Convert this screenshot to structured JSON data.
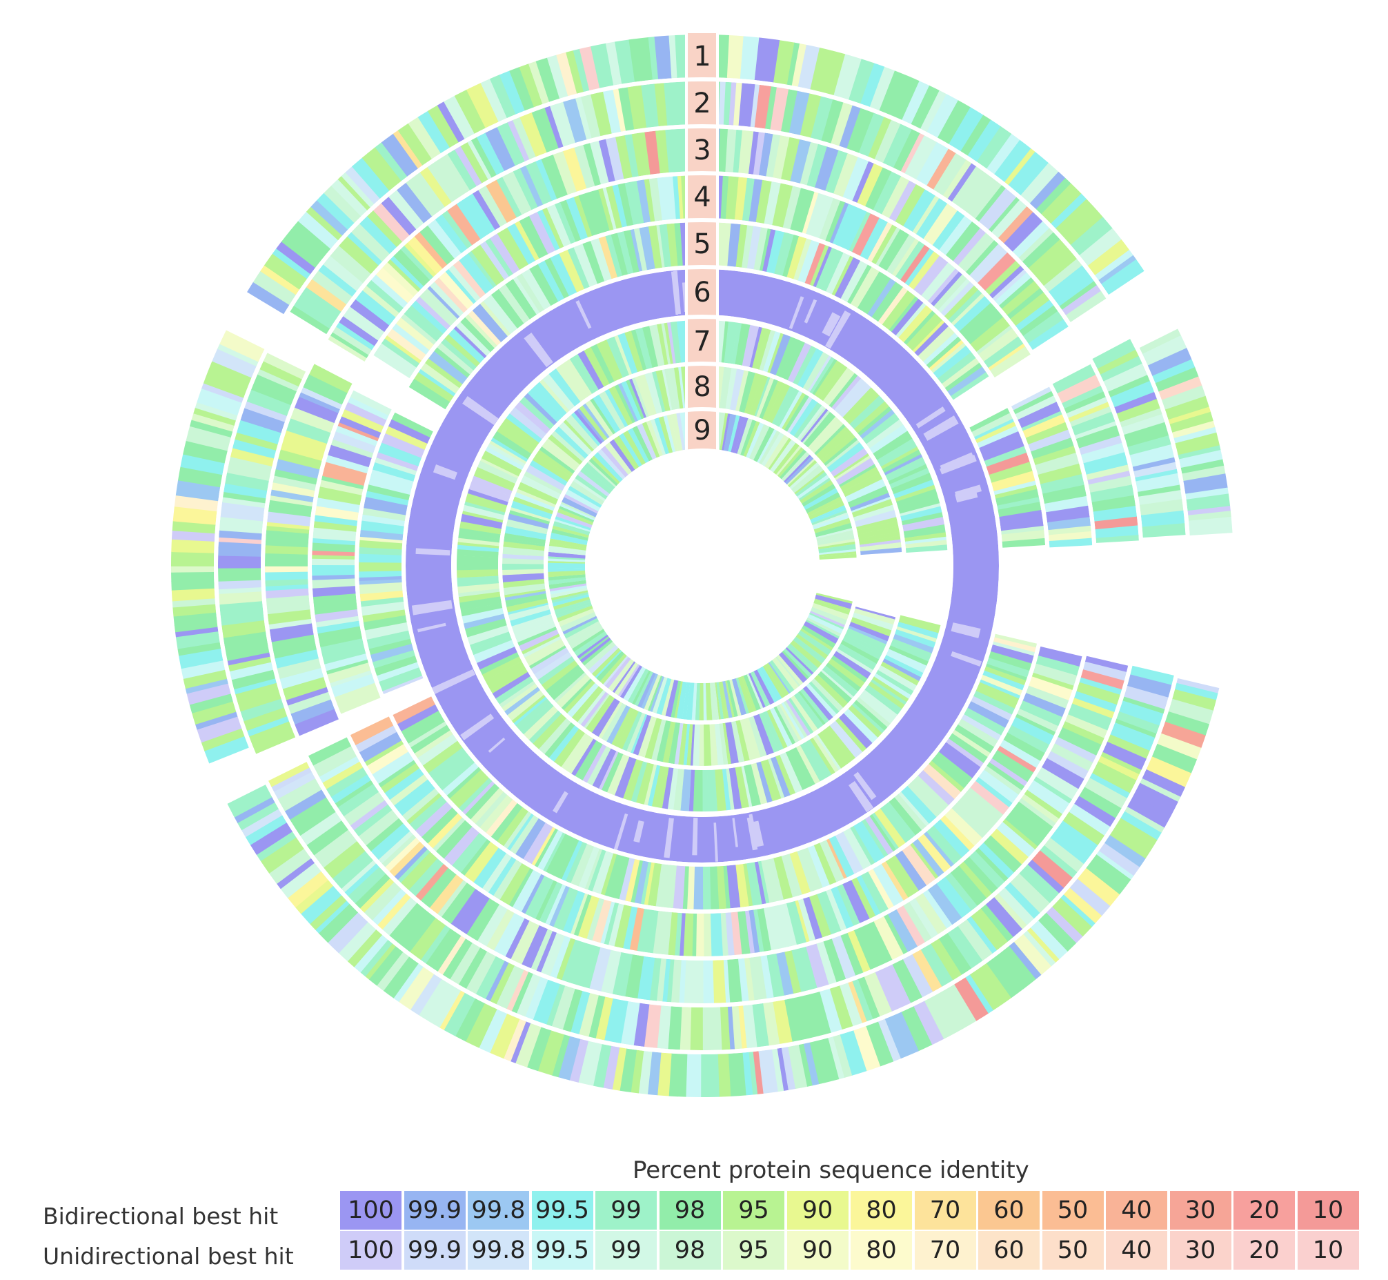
{
  "figure": {
    "ring_labels": [
      "1",
      "2",
      "3",
      "4",
      "5",
      "6",
      "7",
      "8",
      "9"
    ],
    "reference_ring": "6"
  },
  "legend": {
    "title": "Percent protein sequence identity",
    "rows": [
      {
        "label": "Bidirectional best hit",
        "values": [
          "100",
          "99.9",
          "99.8",
          "99.5",
          "99",
          "98",
          "95",
          "90",
          "80",
          "70",
          "60",
          "50",
          "40",
          "30",
          "20",
          "10"
        ],
        "colors": [
          "#9b96f2",
          "#97b5f2",
          "#9cc8f2",
          "#8ff1ee",
          "#9ef2c9",
          "#92edaa",
          "#b8f392",
          "#e8f890",
          "#fbf69a",
          "#fde39b",
          "#fbc791",
          "#fbbd94",
          "#f9b397",
          "#f6a597",
          "#f7a09d",
          "#f49a98"
        ]
      },
      {
        "label": "Unidirectional best hit",
        "values": [
          "100",
          "99.9",
          "99.8",
          "99.5",
          "99",
          "98",
          "95",
          "90",
          "80",
          "70",
          "60",
          "50",
          "40",
          "30",
          "20",
          "10"
        ],
        "colors": [
          "#cfccf8",
          "#cfdcf9",
          "#d2e5f9",
          "#c9f7f6",
          "#d2f8e6",
          "#cbf6d6",
          "#dcf9cb",
          "#f3fbc9",
          "#fdfbcd",
          "#fef2cf",
          "#fde4c9",
          "#fddfca",
          "#fcd9cb",
          "#fbd3cb",
          "#fbd0ce",
          "#fad0cf"
        ]
      }
    ]
  },
  "colors": {
    "background": "#ffffff",
    "gap": "#ffffff",
    "label_band": "#f9d3c6",
    "text": "#222222"
  }
}
